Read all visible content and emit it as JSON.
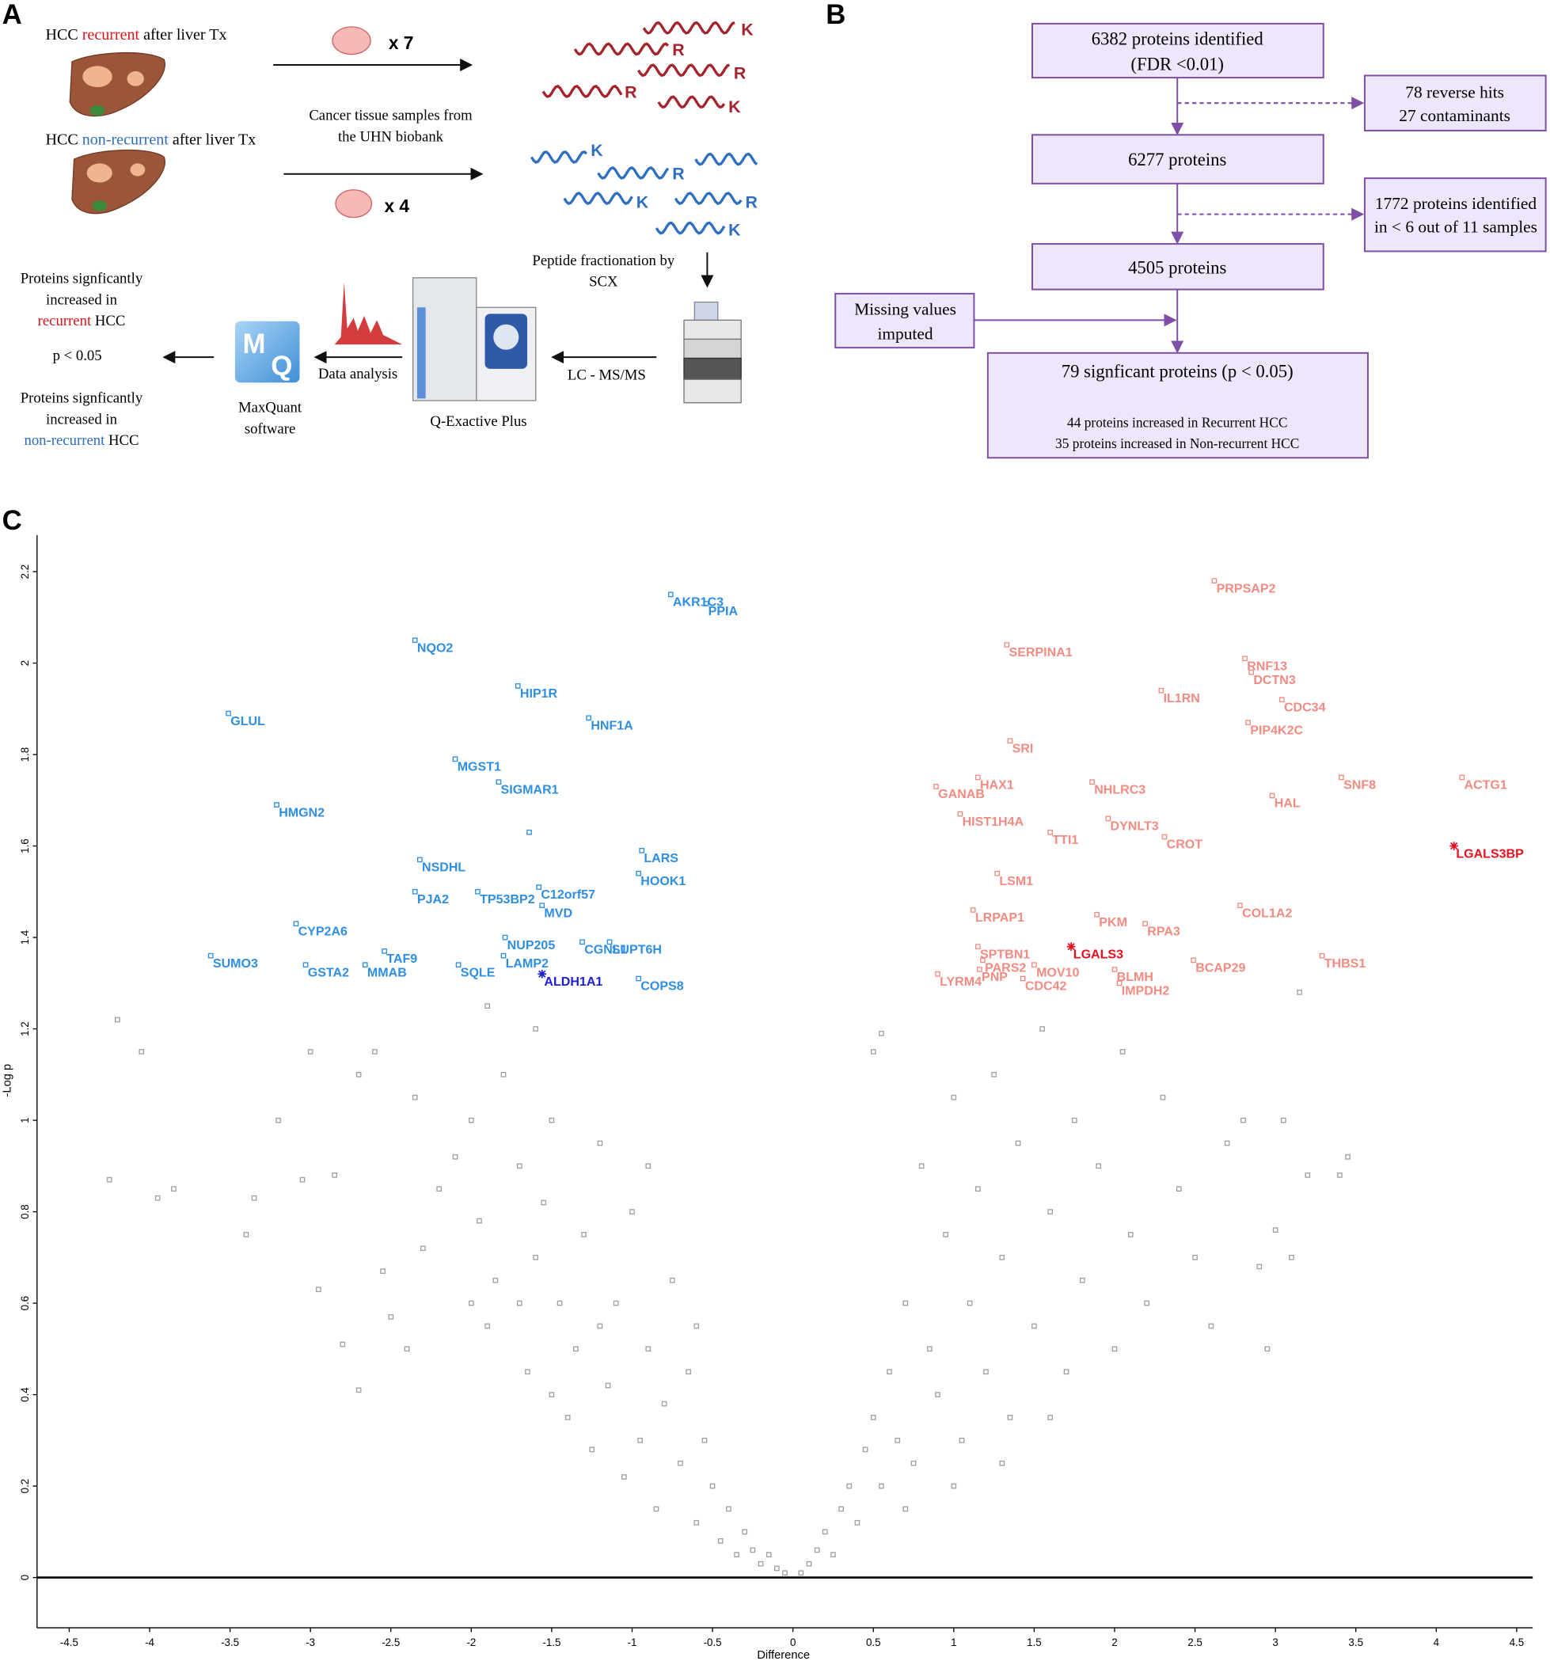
{
  "panel_labels": [
    "A",
    "B",
    "C"
  ],
  "panel_a": {
    "recurrent_title": [
      "HCC",
      "recurrent",
      "after liver Tx"
    ],
    "nonrecurrent_title": [
      "HCC",
      "non-recurrent",
      "after liver Tx"
    ],
    "count_recurrent": "x 7",
    "count_nonrecurrent": "x 4",
    "samples_text": [
      "Cancer tissue samples from",
      "the UHN biobank"
    ],
    "peptides_red": [
      "K",
      "R",
      "R",
      "R",
      "K"
    ],
    "peptides_blue": [
      "K",
      "R",
      "K",
      "R",
      "K"
    ],
    "fractionation": [
      "Peptide fractionation by",
      "SCX"
    ],
    "lcms": "LC - MS/MS",
    "instrument": "Q-Exactive Plus",
    "data_analysis": "Data analysis",
    "maxquant_logo": [
      "M",
      "Q"
    ],
    "maxquant": [
      "MaxQuant",
      "software"
    ],
    "result_recurrent": [
      "Proteins signficantly",
      "increased in",
      "recurrent",
      "HCC"
    ],
    "pvalue": "p < 0.05",
    "result_nonrecurrent": [
      "Proteins signficantly",
      "increased in",
      "non-recurrent",
      "HCC"
    ]
  },
  "panel_b": {
    "identified": [
      "6382 proteins identified",
      "(FDR <0.01)"
    ],
    "removed": [
      "78 reverse hits",
      "27 contaminants"
    ],
    "after_filter1": "6277 proteins",
    "missing": [
      "1772 proteins identified",
      "in < 6 out of 11 samples"
    ],
    "after_filter2": "4505 proteins",
    "imputed": [
      "Missing values",
      "imputed"
    ],
    "significant": [
      "79 signficant proteins (p < 0.05)",
      "44 proteins increased in Recurrent HCC",
      "35 proteins increased in Non-recurrent HCC"
    ]
  },
  "chart_data": {
    "type": "scatter",
    "x_label": "Difference",
    "y_label": "-Log p",
    "xlim": [
      -4.7,
      4.6
    ],
    "ylim": [
      -0.11,
      2.28
    ],
    "xticks": [
      -4.5,
      -4,
      -3.5,
      -3,
      -2.5,
      -2,
      -1.5,
      -1,
      -0.5,
      0,
      0.5,
      1,
      1.5,
      2,
      2.5,
      3,
      3.5,
      4,
      4.5
    ],
    "yticks": [
      0,
      0.2,
      0.4,
      0.6,
      0.8,
      1,
      1.2,
      1.4,
      1.6,
      1.8,
      2,
      2.2
    ],
    "series": [
      {
        "color": "#a0a0a0",
        "marker": "square",
        "x": [
          -4.25,
          -4.2,
          -4.05,
          -3.95,
          -3.85,
          -3.4,
          -3.35,
          -3.2,
          -3.05,
          -3.0,
          -2.95,
          -2.85,
          -2.8,
          -2.7,
          -2.7,
          -2.6,
          -2.55,
          -2.5,
          -2.4,
          -2.35,
          -2.3,
          -2.2,
          -2.1,
          -2.0,
          -1.95,
          -1.9,
          -1.85,
          -1.8,
          -1.7,
          -1.65,
          -1.6,
          -1.55,
          -1.5,
          -1.45,
          -1.4,
          -1.35,
          -1.3,
          -1.25,
          -1.2,
          -1.15,
          -1.1,
          -1.05,
          -1.0,
          -0.95,
          -0.9,
          -0.85,
          -0.8,
          -0.75,
          -0.7,
          -0.65,
          -0.6,
          -0.55,
          -0.5,
          -0.45,
          -0.4,
          -0.35,
          -0.3,
          -0.25,
          -0.2,
          -0.15,
          -0.1,
          -0.05,
          -1.5,
          -1.7,
          -2.0,
          -1.2,
          -0.9,
          -1.6,
          -0.6,
          -1.9,
          0.05,
          0.1,
          0.15,
          0.2,
          0.25,
          0.3,
          0.35,
          0.4,
          0.45,
          0.5,
          0.55,
          0.6,
          0.65,
          0.7,
          0.75,
          0.8,
          0.85,
          0.9,
          0.95,
          1.0,
          1.05,
          1.1,
          1.15,
          1.2,
          1.25,
          1.3,
          1.35,
          1.4,
          1.5,
          1.55,
          1.6,
          1.7,
          1.75,
          1.8,
          1.9,
          2.0,
          2.05,
          2.1,
          2.2,
          2.3,
          2.4,
          2.5,
          2.6,
          2.7,
          2.8,
          2.9,
          3.0,
          3.05,
          3.1,
          3.2,
          3.4,
          3.45,
          2.95,
          3.15,
          0.5,
          0.55,
          1.0,
          1.3,
          0.7,
          1.6
        ],
        "values": [
          0.87,
          1.22,
          1.15,
          0.83,
          0.85,
          0.75,
          0.83,
          1.0,
          0.87,
          1.15,
          0.63,
          0.88,
          0.51,
          0.41,
          1.1,
          1.15,
          0.67,
          0.57,
          0.5,
          1.05,
          0.72,
          0.85,
          0.92,
          1.0,
          0.78,
          0.55,
          0.65,
          1.1,
          0.9,
          0.45,
          0.7,
          0.82,
          1.0,
          0.6,
          0.35,
          0.5,
          0.75,
          0.28,
          0.95,
          0.42,
          0.6,
          0.22,
          0.8,
          0.3,
          0.5,
          0.15,
          0.38,
          0.65,
          0.25,
          0.45,
          0.12,
          0.3,
          0.2,
          0.08,
          0.15,
          0.05,
          0.1,
          0.06,
          0.03,
          0.05,
          0.02,
          0.01,
          0.4,
          0.6,
          0.6,
          0.55,
          0.9,
          1.2,
          0.55,
          1.25,
          0.01,
          0.03,
          0.06,
          0.1,
          0.05,
          0.15,
          0.2,
          0.12,
          0.28,
          0.35,
          0.2,
          0.45,
          0.3,
          0.6,
          0.25,
          0.9,
          0.5,
          0.4,
          0.75,
          1.05,
          0.3,
          0.6,
          0.85,
          0.45,
          1.1,
          0.7,
          0.35,
          0.95,
          0.55,
          1.2,
          0.8,
          0.45,
          1.0,
          0.65,
          0.9,
          0.5,
          1.15,
          0.75,
          0.6,
          1.05,
          0.85,
          0.7,
          0.55,
          0.95,
          1.0,
          0.68,
          0.76,
          1.0,
          0.7,
          0.88,
          0.88,
          0.92,
          0.5,
          1.28,
          1.15,
          1.19,
          0.2,
          0.25,
          0.15,
          0.35
        ]
      },
      {
        "color": "#2f8ee0",
        "marker": "square",
        "x": [
          -0.76,
          -0.54,
          -2.35,
          -1.71,
          -3.51,
          -1.27,
          -2.1,
          -1.83,
          -3.21,
          -1.64,
          -2.32,
          -0.94,
          -0.96,
          -2.35,
          -1.96,
          -1.58,
          -1.56,
          -3.09,
          -1.79,
          -1.31,
          -3.62,
          -2.54,
          -1.8,
          -1.14,
          -3.03,
          -2.66,
          -2.08,
          -0.96
        ],
        "values": [
          2.15,
          2.13,
          2.05,
          1.95,
          1.89,
          1.88,
          1.79,
          1.74,
          1.69,
          1.63,
          1.57,
          1.59,
          1.54,
          1.5,
          1.5,
          1.51,
          1.47,
          1.43,
          1.4,
          1.39,
          1.36,
          1.37,
          1.36,
          1.39,
          1.34,
          1.34,
          1.34,
          1.31
        ],
        "labels": [
          "AKR1C3",
          "PPIA",
          "NQO2",
          "HIP1R",
          "GLUL",
          "HNF1A",
          "MGST1",
          "SIGMAR1",
          "HMGN2",
          null,
          "NSDHL",
          "LARS",
          "HOOK1",
          "PJA2",
          "TP53BP2",
          "C12orf57",
          "MVD",
          "CYP2A6",
          "NUP205",
          "CGNL1",
          "SUMO3",
          "TAF9",
          "LAMP2",
          "SUPT6H",
          "GSTA2",
          "MMAB",
          "SQLE",
          "COPS8"
        ]
      },
      {
        "color": "#1d1dd6",
        "marker": "star",
        "x": [
          -1.56
        ],
        "values": [
          1.32
        ],
        "labels": [
          "ALDH1A1"
        ]
      },
      {
        "color": "#f28b82",
        "marker": "square",
        "x": [
          2.62,
          1.33,
          2.81,
          2.85,
          2.29,
          3.04,
          2.83,
          1.35,
          4.16,
          3.41,
          1.15,
          0.89,
          1.86,
          2.98,
          1.04,
          1.96,
          1.6,
          2.31,
          1.27,
          2.78,
          1.12,
          1.89,
          2.19,
          1.15,
          1.18,
          1.5,
          2.49,
          3.29,
          1.16,
          0.9,
          2.0,
          1.43,
          2.03
        ],
        "values": [
          2.18,
          2.04,
          2.01,
          1.98,
          1.94,
          1.92,
          1.87,
          1.83,
          1.75,
          1.75,
          1.75,
          1.73,
          1.74,
          1.71,
          1.67,
          1.66,
          1.63,
          1.62,
          1.54,
          1.47,
          1.46,
          1.45,
          1.43,
          1.38,
          1.35,
          1.34,
          1.35,
          1.36,
          1.33,
          1.32,
          1.33,
          1.31,
          1.3
        ],
        "labels": [
          "PRPSAP2",
          "SERPINA1",
          "RNF13",
          "DCTN3",
          "IL1RN",
          "CDC34",
          "PIP4K2C",
          "SRI",
          "ACTG1",
          "SNF8",
          "HAX1",
          "GANAB",
          "NHLRC3",
          "HAL",
          "HIST1H4A",
          "DYNLT3",
          "TTI1",
          "CROT",
          "LSM1",
          "COL1A2",
          "LRPAP1",
          "PKM",
          "RPA3",
          "SPTBN1",
          "PARS2",
          "MOV10",
          "BCAP29",
          "THBS1",
          "PNP",
          "LYRM4",
          "BLMH",
          "CDC42",
          "IMPDH2"
        ]
      },
      {
        "color": "#e8101e",
        "marker": "star",
        "x": [
          4.11,
          1.73
        ],
        "values": [
          1.6,
          1.38
        ],
        "labels": [
          "LGALS3BP",
          "LGALS3"
        ]
      }
    ]
  }
}
